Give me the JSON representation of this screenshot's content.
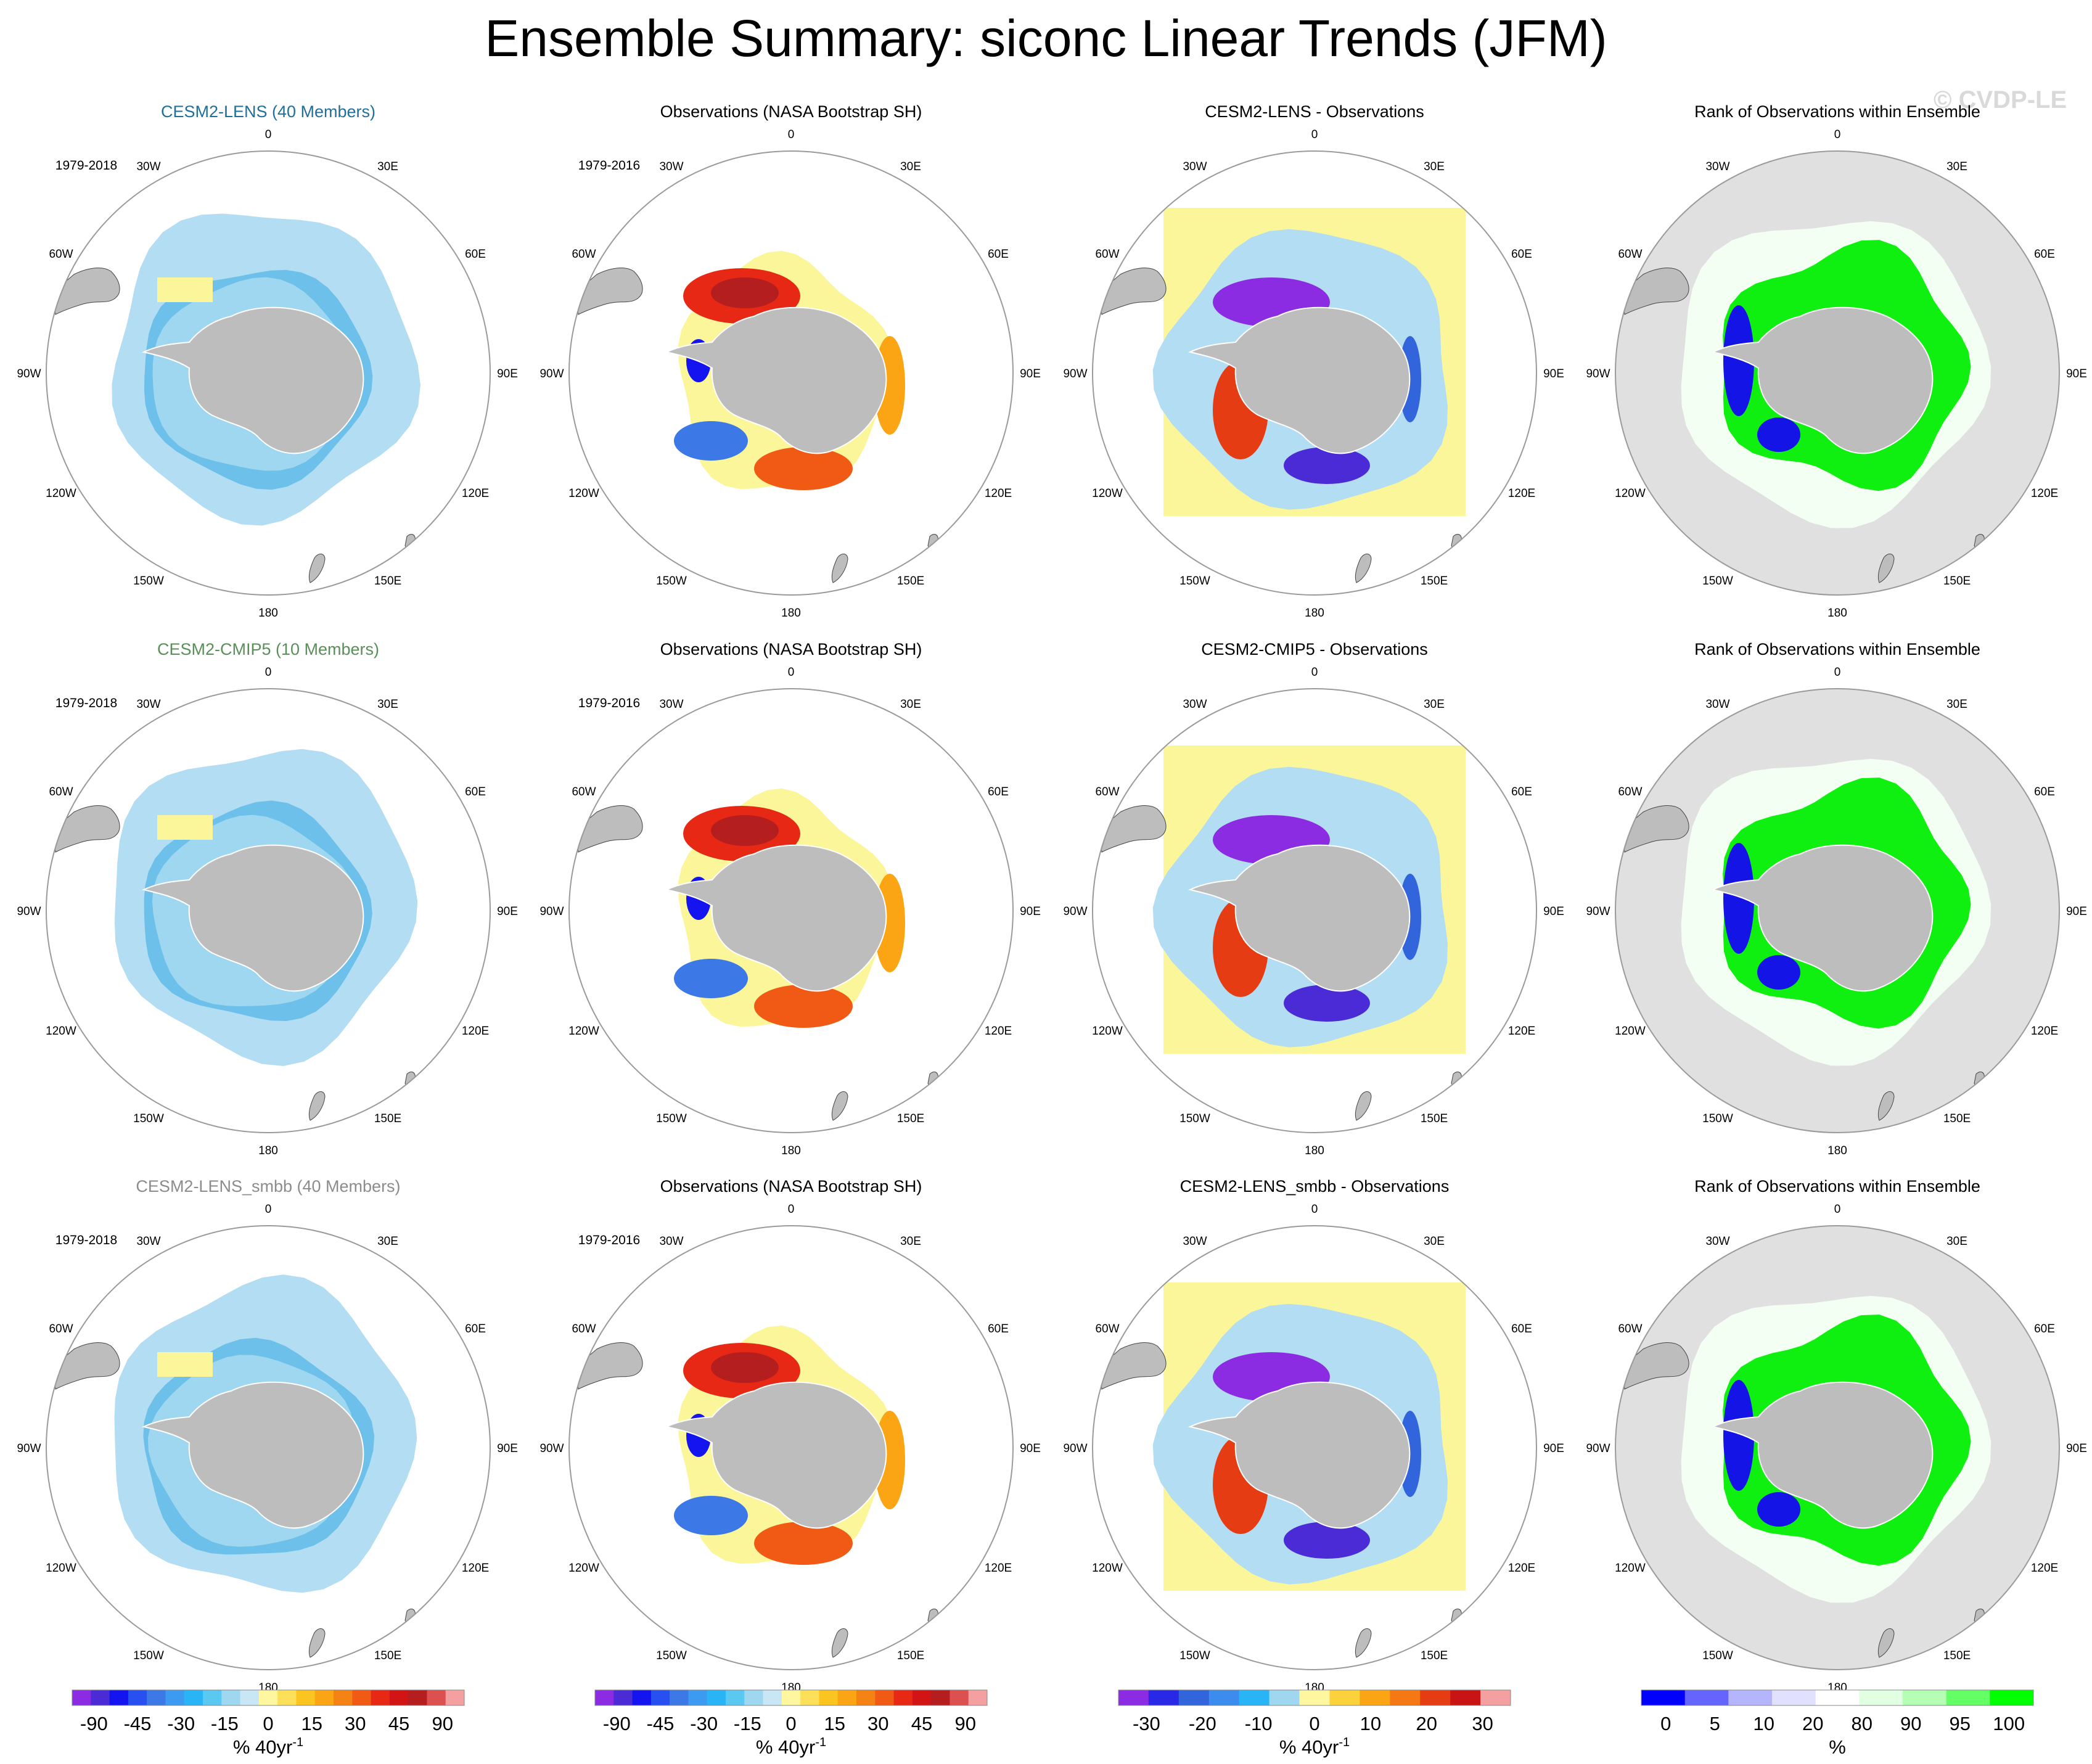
{
  "title": "Ensemble Summary: siconc Linear Trends (JFM)",
  "watermark": "© CVDP-LE",
  "colors": {
    "land": "#bdbdbd",
    "light_blue": "#b3ddf2",
    "yellow": "#fcf69a",
    "green": "#10f010",
    "row_titles": [
      "#1f6f9a",
      "#5a8f5a",
      "#8c8c8c"
    ]
  },
  "chart_data": {
    "type": "heatmap",
    "rows": [
      {
        "panels": [
          {
            "title": "CESM2-LENS (40 Members)",
            "period": "1979-2018",
            "kind": "model"
          },
          {
            "title": "Observations (NASA Bootstrap SH)",
            "period": "1979-2016",
            "kind": "obs"
          },
          {
            "title": "CESM2-LENS - Observations",
            "period": "",
            "kind": "diff"
          },
          {
            "title": "Rank of Observations within Ensemble",
            "period": "",
            "kind": "rank"
          }
        ]
      },
      {
        "panels": [
          {
            "title": "CESM2-CMIP5 (10 Members)",
            "period": "1979-2018",
            "kind": "model"
          },
          {
            "title": "Observations (NASA Bootstrap SH)",
            "period": "1979-2016",
            "kind": "obs"
          },
          {
            "title": "CESM2-CMIP5 - Observations",
            "period": "",
            "kind": "diff"
          },
          {
            "title": "Rank of Observations within Ensemble",
            "period": "",
            "kind": "rank"
          }
        ]
      },
      {
        "panels": [
          {
            "title": "CESM2-LENS_smbb (40 Members)",
            "period": "1979-2018",
            "kind": "model"
          },
          {
            "title": "Observations (NASA Bootstrap SH)",
            "period": "1979-2016",
            "kind": "obs"
          },
          {
            "title": "CESM2-LENS_smbb - Observations",
            "period": "",
            "kind": "diff"
          },
          {
            "title": "Rank of Observations within Ensemble",
            "period": "",
            "kind": "rank"
          }
        ]
      }
    ],
    "longitude_labels": [
      {
        "label": "0",
        "angle": 0
      },
      {
        "label": "30E",
        "angle": 30
      },
      {
        "label": "60E",
        "angle": 60
      },
      {
        "label": "90E",
        "angle": 90
      },
      {
        "label": "120E",
        "angle": 120
      },
      {
        "label": "150E",
        "angle": 150
      },
      {
        "label": "180",
        "angle": 180
      },
      {
        "label": "150W",
        "angle": 210
      },
      {
        "label": "120W",
        "angle": 240
      },
      {
        "label": "90W",
        "angle": 270
      },
      {
        "label": "60W",
        "angle": 300
      },
      {
        "label": "30W",
        "angle": 330
      }
    ],
    "colorbars": [
      {
        "units": "% 40yr",
        "units_sup": "-1",
        "ticks": [
          "-90",
          "-45",
          "-30",
          "-15",
          "0",
          "15",
          "30",
          "45",
          "90"
        ],
        "colors": [
          "#8b2be2",
          "#4b2bd6",
          "#1414f0",
          "#2850f0",
          "#3c78e6",
          "#3c9bf0",
          "#28b4f5",
          "#5ac8f0",
          "#a0d7f0",
          "#c8e6f5",
          "#fff7a0",
          "#fde05a",
          "#fcc41e",
          "#fca514",
          "#f58214",
          "#f05a14",
          "#e62814",
          "#d21414",
          "#b41e1e",
          "#dc5050",
          "#f5a0a0"
        ]
      },
      {
        "units": "% 40yr",
        "units_sup": "-1",
        "ticks": [
          "-90",
          "-45",
          "-30",
          "-15",
          "0",
          "15",
          "30",
          "45",
          "90"
        ],
        "colors": [
          "#8b2be2",
          "#4b2bd6",
          "#1414f0",
          "#2850f0",
          "#3c78e6",
          "#3c9bf0",
          "#28b4f5",
          "#5ac8f0",
          "#a0d7f0",
          "#c8e6f5",
          "#fff7a0",
          "#fde05a",
          "#fcc41e",
          "#fca514",
          "#f58214",
          "#f05a14",
          "#e62814",
          "#d21414",
          "#b41e1e",
          "#dc5050",
          "#f5a0a0"
        ]
      },
      {
        "units": "% 40yr",
        "units_sup": "-1",
        "ticks": [
          "-30",
          "-20",
          "-10",
          "0",
          "10",
          "20",
          "30"
        ],
        "colors": [
          "#8b2be2",
          "#2828e6",
          "#3264dc",
          "#3c8cf0",
          "#28b4f5",
          "#a0d7f0",
          "#fff7a0",
          "#fcd23c",
          "#fca514",
          "#f57814",
          "#e63c14",
          "#c81414",
          "#f5a0a0"
        ]
      },
      {
        "units": "%",
        "units_sup": "",
        "ticks": [
          "0",
          "5",
          "10",
          "20",
          "80",
          "90",
          "95",
          "100"
        ],
        "colors": [
          "#0000ff",
          "#6464ff",
          "#b4b4ff",
          "#e1e1ff",
          "#ffffff",
          "#e1ffe1",
          "#b4ffb4",
          "#64ff64",
          "#00ff00"
        ]
      }
    ]
  }
}
